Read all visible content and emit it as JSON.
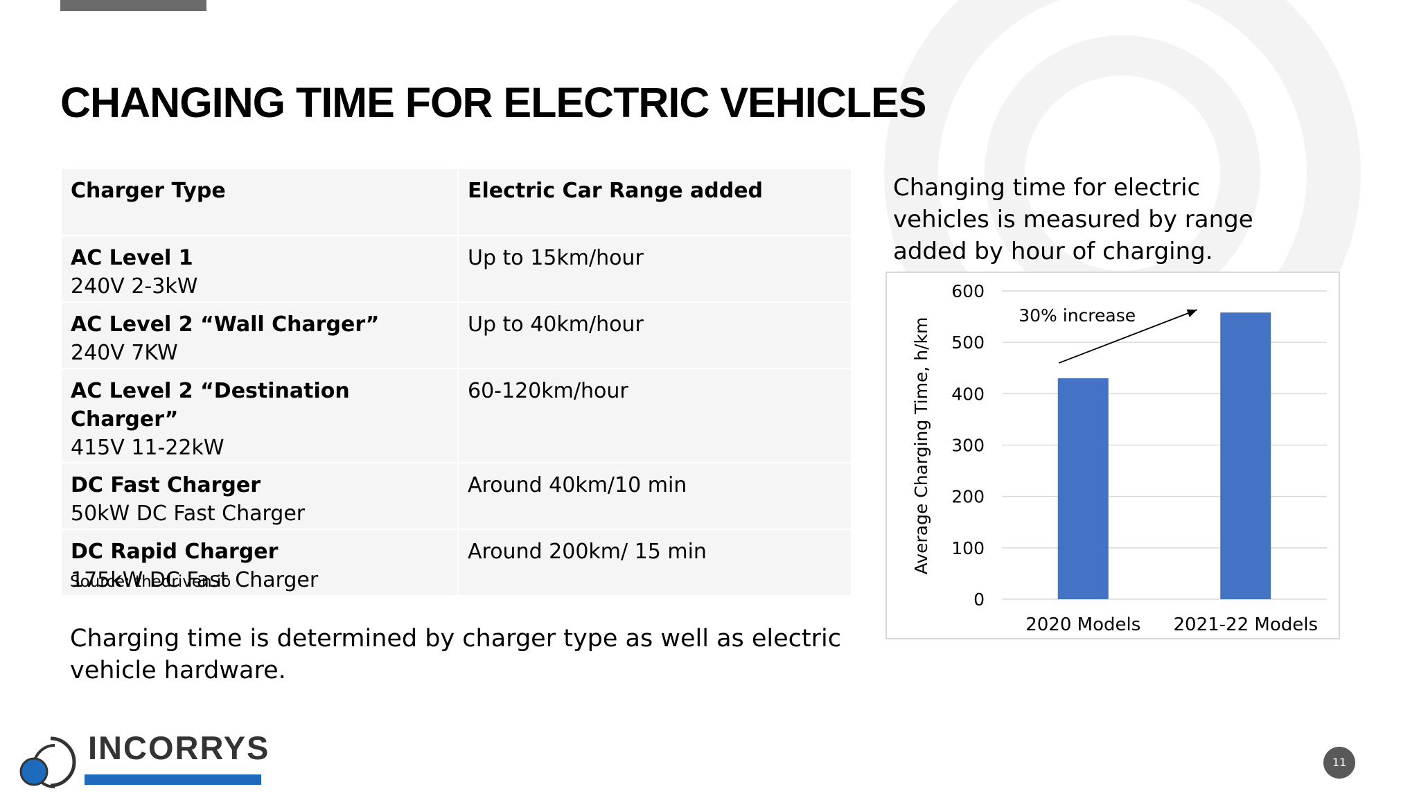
{
  "slide": {
    "title": "CHANGING TIME FOR ELECTRIC VEHICLES",
    "page_number": "11"
  },
  "table": {
    "headers": [
      "Charger Type",
      "Electric Car Range added"
    ],
    "rows": [
      {
        "name": "AC Level 1",
        "spec": "240V 2-3kW",
        "range": "Up to 15km/hour"
      },
      {
        "name": "AC Level 2 “Wall Charger”",
        "spec": "240V 7KW",
        "range": "Up to 40km/hour"
      },
      {
        "name": "AC Level 2 “Destination Charger”",
        "spec": "415V 11-22kW",
        "range": "60-120km/hour"
      },
      {
        "name": "DC Fast Charger",
        "spec": "50kW DC Fast Charger",
        "range": "Around 40km/10 min"
      },
      {
        "name": "DC Rapid Charger",
        "spec": "175kW DC Fast Charger",
        "range": "Around 200km/ 15 min"
      }
    ],
    "source": "Source: thedriven.io"
  },
  "description": "Charging time is determined by charger type as well as electric vehicle hardware.",
  "side_text": "Changing time for electric vehicles is measured by range added by hour of charging.",
  "logo": {
    "text": "INCORRYS"
  },
  "colors": {
    "bar": "#4472c4",
    "page_badge": "#595959",
    "logo_bar": "#1e6bbd"
  },
  "chart_data": {
    "type": "bar",
    "categories": [
      "2020 Models",
      "2021-22 Models"
    ],
    "values": [
      430,
      558
    ],
    "ylabel": "Average Charging Time, h/km",
    "xlabel": "",
    "ylim": [
      0,
      600
    ],
    "yticks": [
      0,
      100,
      200,
      300,
      400,
      500,
      600
    ],
    "grid": true,
    "annotation": "30% increase"
  }
}
